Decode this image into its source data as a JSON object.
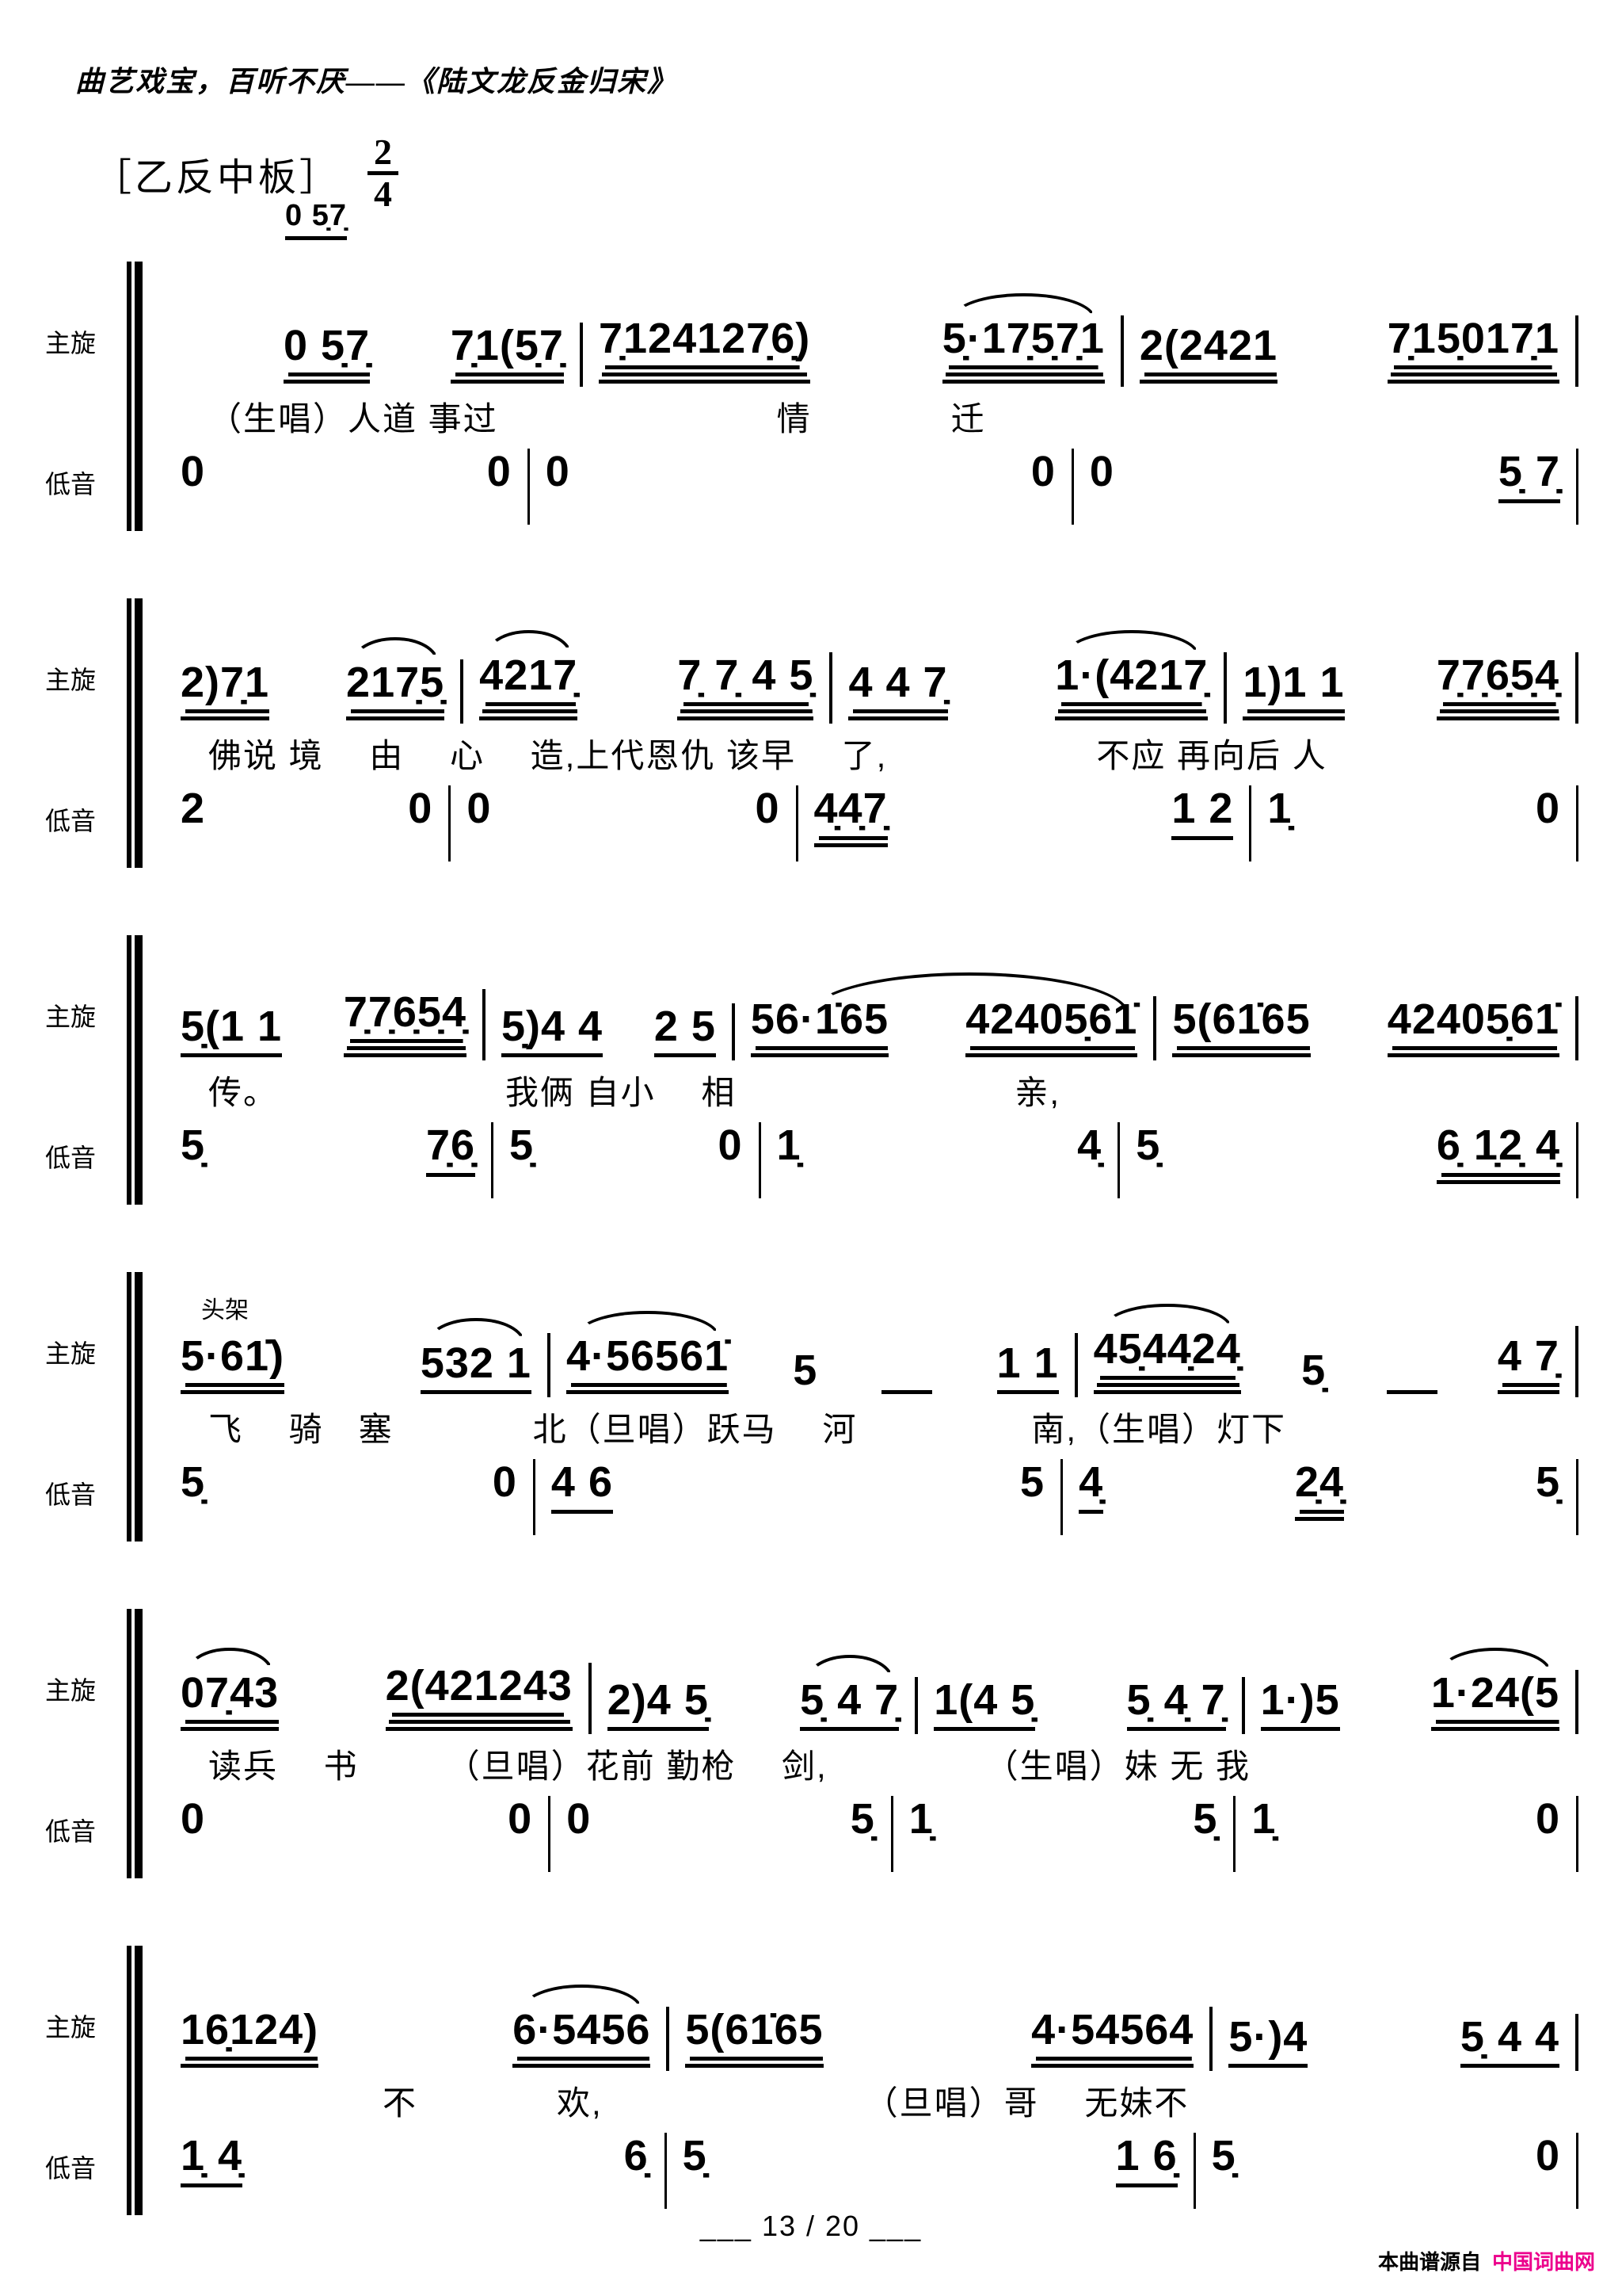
{
  "header": {
    "title": "曲艺戏宝，百听不厌——《陆文龙反金归宋》"
  },
  "tempo": {
    "label": "［乙反中板］",
    "time_top": "2",
    "time_bottom": "4"
  },
  "pickup": "0 5̣7̣",
  "part_labels": {
    "melody": "主旋",
    "bass": "低音"
  },
  "systems": [
    {
      "melody": [
        {
          "groups": [
            {
              "t": "0 5̣7̣",
              "u": 2
            },
            {
              "t": "7̣1(5̣7̣",
              "u": 2
            }
          ]
        },
        {
          "groups": [
            {
              "t": "7̣124127̣6̣)",
              "u": 3
            },
            {
              "t": "5̣·17̣5̣7̣1",
              "u": 3,
              "s": true
            }
          ]
        },
        {
          "groups": [
            {
              "t": "2(2421",
              "u": 2
            },
            {
              "t": "7̣15̣017̣1",
              "u": 3
            }
          ]
        }
      ],
      "lyrics": "（生唱）人道 事过　　　　　　　　情　　　　迁",
      "bass": [
        {
          "groups": [
            {
              "t": "0"
            },
            {
              "t": "0"
            }
          ]
        },
        {
          "groups": [
            {
              "t": "0"
            },
            {
              "t": "0"
            }
          ]
        },
        {
          "groups": [
            {
              "t": "0"
            },
            {
              "t": "5̣ 7̣",
              "u": 1
            }
          ]
        }
      ]
    },
    {
      "melody": [
        {
          "groups": [
            {
              "t": "2)7̣1",
              "u": 2
            },
            {
              "t": "217̣5̣",
              "u": 2,
              "s": true
            }
          ]
        },
        {
          "groups": [
            {
              "t": "4217̣",
              "u": 3,
              "s": true
            },
            {
              "t": "7̣ 7̣ 4 5̣",
              "u": 3
            }
          ]
        },
        {
          "groups": [
            {
              "t": "4 4 7̣",
              "u": 2
            },
            {
              "t": "1·(4217̣",
              "u": 3,
              "s": true
            }
          ]
        },
        {
          "groups": [
            {
              "t": "1)1 1",
              "u": 2
            },
            {
              "t": "7̣7̣6̣5̣4̣",
              "u": 3
            }
          ]
        }
      ],
      "lyrics": "佛说 境　 由　 心　 造,上代恩仇 该早　 了,　　　　　　不应 再向后 人",
      "bass": [
        {
          "groups": [
            {
              "t": "2"
            },
            {
              "t": "0"
            }
          ]
        },
        {
          "groups": [
            {
              "t": "0"
            },
            {
              "t": "0"
            }
          ]
        },
        {
          "groups": [
            {
              "t": "4̣4̣7̣",
              "u": 2
            },
            {
              "t": "1 2",
              "u": 1
            }
          ]
        },
        {
          "groups": [
            {
              "t": "1̣"
            },
            {
              "t": "0"
            }
          ]
        }
      ]
    },
    {
      "melody": [
        {
          "groups": [
            {
              "t": "5̣(1 1",
              "u": 1
            },
            {
              "t": "7̣7̣6̣5̣4̣",
              "u": 3
            }
          ]
        },
        {
          "groups": [
            {
              "t": "5̣)4 4",
              "u": 1
            },
            {
              "t": "2 5",
              "u": 1
            }
          ]
        },
        {
          "slur": true,
          "groups": [
            {
              "t": "56·1̇65",
              "u": 2
            },
            {
              "t": "42405̣61̇",
              "u": 2
            }
          ]
        },
        {
          "groups": [
            {
              "t": "5(61̇65",
              "u": 2
            },
            {
              "t": "42405̣61̇",
              "u": 2
            }
          ]
        }
      ],
      "lyrics": "传。　　　　　　　我俩 自小　 相　　　　　　　　亲,",
      "bass": [
        {
          "groups": [
            {
              "t": "5̣"
            },
            {
              "t": "7̣6̣",
              "u": 1
            }
          ]
        },
        {
          "groups": [
            {
              "t": "5̣"
            },
            {
              "t": "0"
            }
          ]
        },
        {
          "groups": [
            {
              "t": "1̣"
            },
            {
              "t": "4̣"
            }
          ]
        },
        {
          "groups": [
            {
              "t": "5̣"
            },
            {
              "t": "6̣ 1̣2̣ 4̣",
              "u": 2
            }
          ]
        }
      ]
    },
    {
      "annotation": "头架",
      "melody": [
        {
          "groups": [
            {
              "t": "5·61̇)",
              "u": 2
            },
            {
              "t": "532 1",
              "u": 1,
              "s": true
            }
          ]
        },
        {
          "groups": [
            {
              "t": "4·56561̇",
              "u": 2,
              "s": true
            },
            {
              "t": "5",
              "u": 0
            },
            {
              "t": "    ",
              "u": 1
            },
            {
              "t": "1 1",
              "u": 1
            }
          ]
        },
        {
          "groups": [
            {
              "t": "45̣44̣24̣",
              "u": 3,
              "s": true
            },
            {
              "t": "5̣",
              "u": 0
            },
            {
              "t": "    ",
              "u": 1
            },
            {
              "t": "4 7̣",
              "u": 2
            }
          ]
        }
      ],
      "lyrics": "飞　 骑　塞　　　　北（旦唱）跃马　 河　　　　　南,（生唱）灯下",
      "bass": [
        {
          "groups": [
            {
              "t": "5̣"
            },
            {
              "t": "0"
            }
          ]
        },
        {
          "groups": [
            {
              "t": "4 6",
              "u": 1
            },
            {
              "t": "5"
            }
          ]
        },
        {
          "groups": [
            {
              "t": "4̣",
              "u": 1
            },
            {
              "t": "2̣4̣",
              "u": 2
            },
            {
              "t": "5̣"
            }
          ]
        }
      ]
    },
    {
      "melody": [
        {
          "groups": [
            {
              "t": "07̣43",
              "u": 2,
              "s": true
            },
            {
              "t": "2(421243",
              "u": 3
            }
          ]
        },
        {
          "groups": [
            {
              "t": "2)4 5̣",
              "u": 1
            },
            {
              "t": "5̣ 4 7̣",
              "u": 1,
              "s": true
            }
          ]
        },
        {
          "groups": [
            {
              "t": "1(4 5̣",
              "u": 1
            },
            {
              "t": "5̣ 4̣ 7̣",
              "u": 1
            }
          ]
        },
        {
          "groups": [
            {
              "t": "1·)5",
              "u": 1
            },
            {
              "t": "1·24(5",
              "u": 2,
              "s": true
            }
          ]
        }
      ],
      "lyrics": "读兵　 书　　　（旦唱）花前 勤枪　 剑,　　　　　（生唱）妹 无 我",
      "bass": [
        {
          "groups": [
            {
              "t": "0"
            },
            {
              "t": "0"
            }
          ]
        },
        {
          "groups": [
            {
              "t": "0"
            },
            {
              "t": "5̣"
            }
          ]
        },
        {
          "groups": [
            {
              "t": "1̣"
            },
            {
              "t": "5̣"
            }
          ]
        },
        {
          "groups": [
            {
              "t": "1̣"
            },
            {
              "t": "0"
            }
          ]
        }
      ]
    },
    {
      "melody": [
        {
          "groups": [
            {
              "t": "16̣124)",
              "u": 2
            },
            {
              "t": "6·5456",
              "u": 2,
              "s": true
            }
          ]
        },
        {
          "groups": [
            {
              "t": "5(61̇65",
              "u": 2
            },
            {
              "t": "4·54564",
              "u": 2
            }
          ]
        },
        {
          "groups": [
            {
              "t": "5·)4",
              "u": 1
            },
            {
              "t": "5̣ 4 4",
              "u": 1
            }
          ]
        }
      ],
      "lyrics": "　　　　　不　　　　欢,　　　　　　　　（旦唱）哥　 无妹不",
      "bass": [
        {
          "groups": [
            {
              "t": "1̣ 4̣",
              "u": 1
            },
            {
              "t": "6̣"
            }
          ]
        },
        {
          "groups": [
            {
              "t": "5̣"
            },
            {
              "t": "1 6̣",
              "u": 1
            }
          ]
        },
        {
          "groups": [
            {
              "t": "5̣"
            },
            {
              "t": "0"
            }
          ]
        }
      ]
    }
  ],
  "footer": {
    "page_text": "___ 13 / 20 ___",
    "source_prefix": "本曲谱源自",
    "source_name": "中国词曲网",
    "source_color": "#ec008c"
  }
}
